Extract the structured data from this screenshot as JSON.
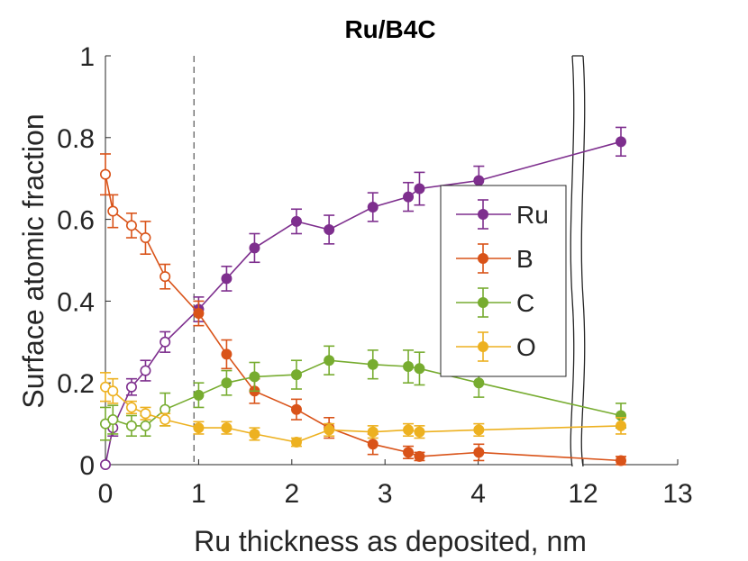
{
  "chart_data": {
    "type": "line",
    "title": "Ru/B4C",
    "xlabel": "Ru thickness as deposited, nm",
    "ylabel": "Surface atomic fraction",
    "x_ticks": [
      "0",
      "1",
      "2",
      "3",
      "4",
      "12",
      "13"
    ],
    "y_ticks": [
      "0",
      "0.2",
      "0.4",
      "0.6",
      "0.8",
      "1"
    ],
    "ylim": [
      0,
      1
    ],
    "x_axis_break": "between 4 and 12",
    "vertical_reference_line_x": 0.95,
    "legend_position": "right",
    "open_markers_note": "open circles for x < 1, filled circles otherwise",
    "series": [
      {
        "name": "Ru",
        "color": "#7E2F8E",
        "x": [
          0,
          0.08,
          0.28,
          0.43,
          0.64,
          1.0,
          1.3,
          1.6,
          2.05,
          2.4,
          2.87,
          3.25,
          3.37,
          4.05,
          12.4
        ],
        "y": [
          0.0,
          0.09,
          0.19,
          0.23,
          0.3,
          0.38,
          0.455,
          0.53,
          0.595,
          0.575,
          0.63,
          0.655,
          0.675,
          0.695,
          0.79
        ],
        "err": [
          0,
          0.02,
          0.02,
          0.025,
          0.025,
          0.03,
          0.03,
          0.035,
          0.03,
          0.035,
          0.035,
          0.035,
          0.04,
          0.035,
          0.035
        ]
      },
      {
        "name": "B",
        "color": "#D95319",
        "x": [
          0,
          0.08,
          0.28,
          0.43,
          0.64,
          1.0,
          1.3,
          1.6,
          2.05,
          2.4,
          2.87,
          3.25,
          3.37,
          4.05,
          12.4
        ],
        "y": [
          0.71,
          0.62,
          0.585,
          0.555,
          0.46,
          0.37,
          0.27,
          0.18,
          0.135,
          0.09,
          0.05,
          0.03,
          0.02,
          0.03,
          0.01
        ],
        "err": [
          0.05,
          0.04,
          0.03,
          0.04,
          0.03,
          0.03,
          0.035,
          0.03,
          0.025,
          0.025,
          0.025,
          0.015,
          0.01,
          0.02,
          0.01
        ]
      },
      {
        "name": "C",
        "color": "#77AC30",
        "x": [
          0,
          0.08,
          0.28,
          0.43,
          0.64,
          1.0,
          1.3,
          1.6,
          2.05,
          2.4,
          2.87,
          3.25,
          3.37,
          4.05,
          12.4
        ],
        "y": [
          0.1,
          0.11,
          0.095,
          0.095,
          0.135,
          0.17,
          0.2,
          0.215,
          0.22,
          0.255,
          0.245,
          0.24,
          0.235,
          0.2,
          0.12
        ],
        "err": [
          0.04,
          0.035,
          0.025,
          0.025,
          0.04,
          0.03,
          0.03,
          0.035,
          0.035,
          0.035,
          0.035,
          0.04,
          0.04,
          0.035,
          0.03
        ]
      },
      {
        "name": "O",
        "color": "#EDB120",
        "x": [
          0,
          0.08,
          0.28,
          0.43,
          0.64,
          1.0,
          1.3,
          1.6,
          2.05,
          2.4,
          2.87,
          3.25,
          3.37,
          4.05,
          12.4
        ],
        "y": [
          0.19,
          0.18,
          0.14,
          0.125,
          0.11,
          0.09,
          0.09,
          0.075,
          0.055,
          0.085,
          0.08,
          0.085,
          0.08,
          0.085,
          0.095
        ],
        "err": [
          0.035,
          0.03,
          0.015,
          0.015,
          0.015,
          0.015,
          0.015,
          0.015,
          0.01,
          0.015,
          0.015,
          0.015,
          0.015,
          0.015,
          0.02
        ]
      }
    ]
  }
}
